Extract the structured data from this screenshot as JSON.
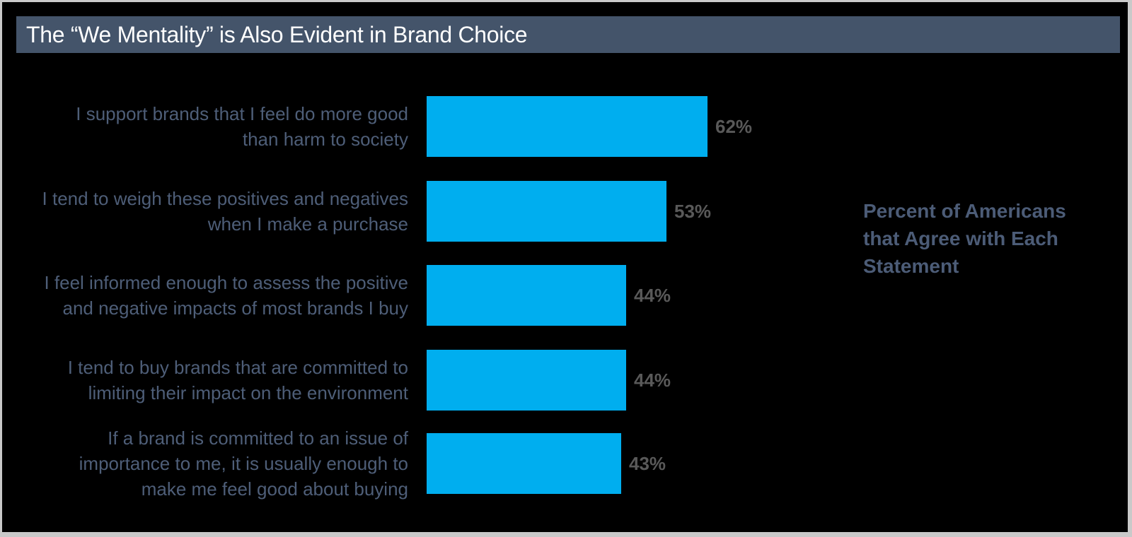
{
  "frame": {
    "border_color": "#c9c9c9",
    "background_color": "#000000"
  },
  "header": {
    "title": "The “We Mentality” is Also Evident in Brand Choice",
    "background_color": "#44546A",
    "text_color": "#FFFFFF"
  },
  "side_note": {
    "text": "Percent of Americans that Agree with Each Statement",
    "lines": [
      "Percent of Americans",
      "that Agree with Each",
      "Statement"
    ],
    "color": "#4C5C77"
  },
  "chart_data": {
    "type": "bar",
    "orientation": "horizontal",
    "title": "The “We Mentality” is Also Evident in Brand Choice",
    "categories": [
      "I support brands that I feel do more good than harm to society",
      "I tend to weigh these positives and negatives when I make a purchase",
      "I feel informed enough to assess the positive and negative impacts of most brands I buy",
      "I tend to buy brands that are committed to limiting their impact on the environment",
      "If a brand is committed to an issue of importance to me, it is usually enough to make me feel good about buying"
    ],
    "category_lines": [
      [
        "I support brands that I feel do more good",
        "than harm to society"
      ],
      [
        "I tend to weigh these positives and negatives",
        "when I make a purchase"
      ],
      [
        "I feel informed enough to assess the positive",
        "and negative impacts of most brands I buy"
      ],
      [
        "I tend to buy brands that are committed to",
        "limiting their impact on the environment"
      ],
      [
        "If a brand is committed to an issue of",
        "importance to me, it is usually enough to",
        "make me feel good about buying"
      ]
    ],
    "values": [
      62,
      53,
      44,
      44,
      43
    ],
    "value_labels": [
      "62%",
      "53%",
      "44%",
      "44%",
      "43%"
    ],
    "unit": "%",
    "bar_color": "#00AEEF",
    "value_label_color": "#595959",
    "category_label_color": "#4E5E78",
    "axes_visible": false,
    "gridlines": false,
    "legend": "none",
    "xlim": [
      0,
      100
    ]
  }
}
